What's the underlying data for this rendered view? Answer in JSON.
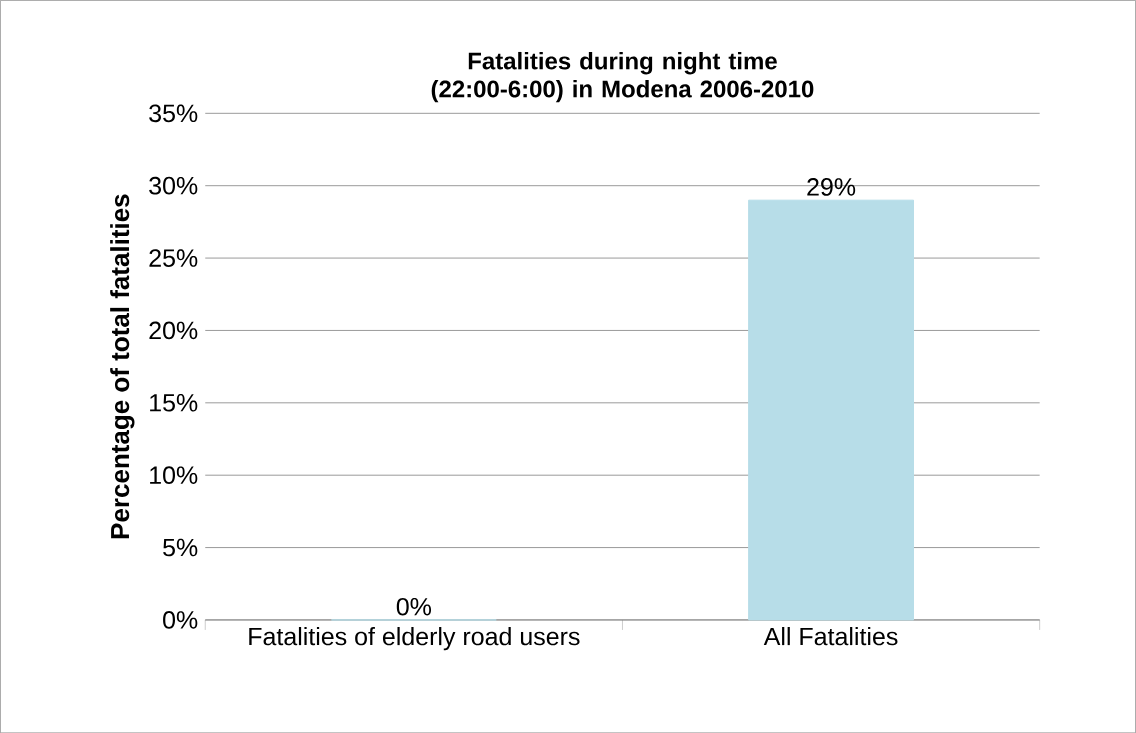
{
  "chart_data": {
    "type": "bar",
    "title": "Fatalities during night time (22:00-6:00) in Modena 2006-2010",
    "ylabel": "Percentage of total fatalities",
    "categories": [
      "Fatalities of elderly road users",
      "All Fatalities"
    ],
    "values": [
      0,
      29
    ],
    "value_labels": [
      "0%",
      "29%"
    ],
    "color": "#b7dde8",
    "ylim": [
      0,
      35
    ],
    "yticks": [
      {
        "value": 0,
        "label": "0%"
      },
      {
        "value": 5,
        "label": "5%"
      },
      {
        "value": 10,
        "label": "10%"
      },
      {
        "value": 15,
        "label": "15%"
      },
      {
        "value": 20,
        "label": "20%"
      },
      {
        "value": 25,
        "label": "25%"
      },
      {
        "value": 30,
        "label": "30%"
      },
      {
        "value": 35,
        "label": "35%"
      }
    ],
    "grid": "y"
  }
}
